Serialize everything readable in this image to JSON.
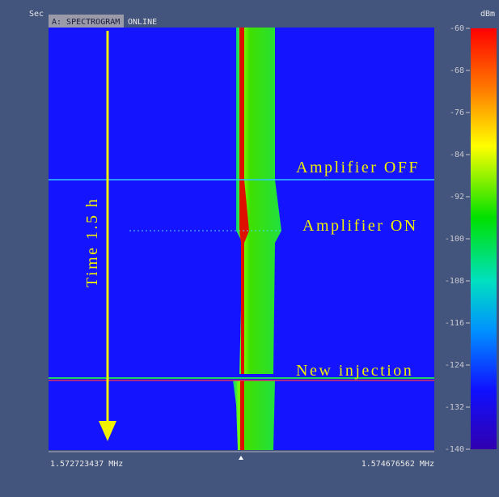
{
  "header": {
    "y_unit": "Sec",
    "tab": "A: SPECTROGRAM",
    "status": "ONLINE"
  },
  "colorbar": {
    "unit": "dBm",
    "ticks": [
      -60,
      -68,
      -76,
      -84,
      -92,
      -100,
      -108,
      -116,
      -124,
      -132,
      -140
    ]
  },
  "x_axis": {
    "start": "1.572723437 MHz",
    "end": "1.574676562 MHz"
  },
  "annotations": {
    "time": "Time 1.5 h",
    "amplifier_off": "Amplifier OFF",
    "amplifier_on": "Amplifier ON",
    "new_injection": "New injection"
  }
}
